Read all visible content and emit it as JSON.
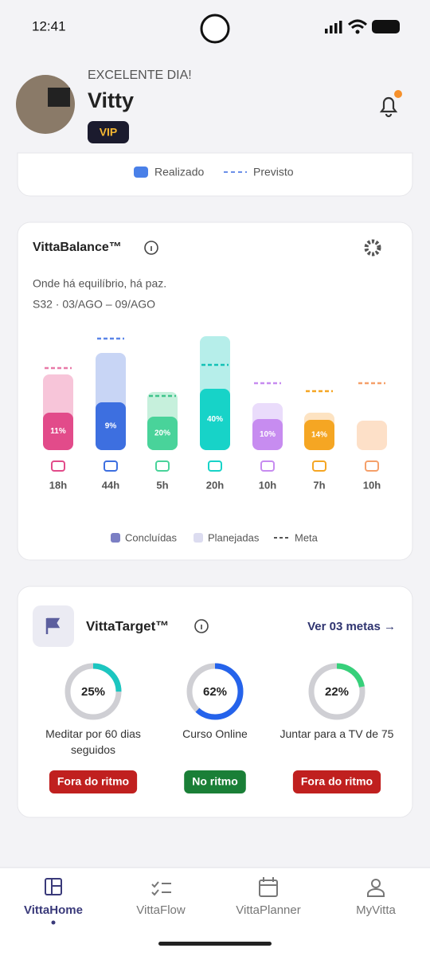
{
  "status_bar": {
    "time": "12:41"
  },
  "header": {
    "greeting": "EXCELENTE DIA!",
    "name": "Vitty",
    "badge": "VIP"
  },
  "summary_legend": {
    "done": "Realizado",
    "forecast": "Previsto"
  },
  "vitta_balance": {
    "title": "VittaBalance™",
    "subtitle": "Onde há equilíbrio, há paz.",
    "period": "S32 · 03/AGO – 09/AGO"
  },
  "chart_data": {
    "type": "bar",
    "ylim": [
      0,
      150
    ],
    "categories": [
      "18h",
      "44h",
      "5h",
      "20h",
      "10h",
      "7h",
      "10h"
    ],
    "series": [
      {
        "name": "Concluídas",
        "color": "#7b7fc4",
        "values": [
          47,
          60,
          42,
          77,
          39,
          38,
          null
        ],
        "value_labels": [
          "11%",
          "9%",
          "20%",
          "40%",
          "10%",
          "14%",
          null
        ]
      },
      {
        "name": "Planejadas",
        "color": "#dcdcf0",
        "values": [
          95,
          122,
          73,
          143,
          59,
          47,
          37
        ]
      },
      {
        "name": "Meta",
        "color": "#555555",
        "values": [
          103,
          140,
          68,
          107,
          84,
          74,
          84
        ]
      }
    ],
    "bar_colors": [
      {
        "done": "#e24b8a",
        "planned": "#f7c5d9",
        "meta": "#e87aa8"
      },
      {
        "done": "#3d6fe0",
        "planned": "#c8d5f5",
        "meta": "#5b86e8"
      },
      {
        "done": "#49d39a",
        "planned": "#c6f0dc",
        "meta": "#3fc48b"
      },
      {
        "done": "#17d3c8",
        "planned": "#b6eeea",
        "meta": "#13c1b6"
      },
      {
        "done": "#c78cf0",
        "planned": "#eadcfb",
        "meta": "#c78cf0"
      },
      {
        "done": "#f5a623",
        "planned": "#fde3c2",
        "meta": "#f5a623"
      },
      {
        "done": "#f5a06a",
        "planned": "#fde0c8",
        "meta": "#f5a06a"
      }
    ]
  },
  "vitta_target": {
    "title": "VittaTarget™",
    "link": "Ver 03 metas →",
    "goals": [
      {
        "name": "Meditar por 60 dias seguidos",
        "progress": 25,
        "progress_label": "25%",
        "status": "Fora do ritmo",
        "on_track": false,
        "color": "#1cc6c0"
      },
      {
        "name": "Curso Online",
        "progress": 62,
        "progress_label": "62%",
        "status": "No ritmo",
        "on_track": true,
        "color": "#2563eb"
      },
      {
        "name": "Juntar para a TV de 75",
        "progress": 22,
        "progress_label": "22%",
        "status": "Fora do ritmo",
        "on_track": false,
        "color": "#37d07a"
      }
    ]
  },
  "nav": {
    "items": [
      {
        "label": "VittaHome",
        "active": true
      },
      {
        "label": "VittaFlow",
        "active": false
      },
      {
        "label": "VittaPlanner",
        "active": false
      },
      {
        "label": "MyVitta",
        "active": false
      }
    ]
  }
}
